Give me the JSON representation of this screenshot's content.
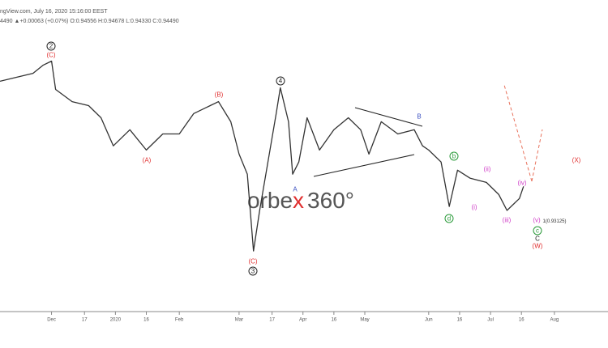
{
  "header": {
    "source": "ngView.com, July 16, 2020 15:16:00 EEST",
    "quote": "4490 ▲+0.00063 (+0.07%) O:0.94556 H:0.94678 L:0.94330 C:0.94490"
  },
  "logo": [
    "orbe",
    "x",
    "360°"
  ],
  "chart_data": {
    "type": "line",
    "color": "#333333",
    "x": [
      5,
      13,
      21,
      26,
      30,
      32,
      40,
      48,
      54,
      60,
      68,
      76,
      84,
      92,
      99,
      107,
      111,
      117,
      121,
      125,
      128,
      131,
      135,
      139,
      141,
      145,
      147,
      150,
      154,
      160,
      167,
      174,
      180,
      184,
      190,
      198,
      206,
      210,
      213,
      219,
      223,
      227,
      233,
      241,
      247,
      251,
      257,
      259
    ],
    "values": [
      0.9872,
      0.9888,
      0.9904,
      0.9937,
      0.9953,
      0.9839,
      0.979,
      0.9774,
      0.9725,
      0.9612,
      0.9677,
      0.9595,
      0.966,
      0.966,
      0.9742,
      0.9774,
      0.979,
      0.9709,
      0.9579,
      0.9498,
      0.9189,
      0.9352,
      0.9547,
      0.9742,
      0.9846,
      0.9709,
      0.9498,
      0.9547,
      0.9725,
      0.9595,
      0.9677,
      0.9725,
      0.9677,
      0.9579,
      0.9709,
      0.966,
      0.9677,
      0.9612,
      0.9595,
      0.9547,
      0.9368,
      0.9514,
      0.9482,
      0.9465,
      0.9416,
      0.9352,
      0.94,
      0.9449
    ],
    "xlim": [
      5,
      300
    ],
    "ylim": [
      0.8945,
      1.0085
    ],
    "xticks": [
      {
        "value": 30,
        "label": "Dec"
      },
      {
        "value": 46,
        "label": "17"
      },
      {
        "value": 61,
        "label": "2020"
      },
      {
        "value": 76,
        "label": "16"
      },
      {
        "value": 92,
        "label": "Feb"
      },
      {
        "value": 121,
        "label": "Mar"
      },
      {
        "value": 137,
        "label": "17"
      },
      {
        "value": 152,
        "label": "Apr"
      },
      {
        "value": 167,
        "label": "16"
      },
      {
        "value": 182,
        "label": "May"
      },
      {
        "value": 213,
        "label": "Jun"
      },
      {
        "value": 228,
        "label": "16"
      },
      {
        "value": 243,
        "label": "Jul"
      },
      {
        "value": 258,
        "label": "16"
      },
      {
        "value": 274,
        "label": "Aug"
      }
    ],
    "annotations": [
      {
        "text": "2",
        "color": "#222222"
      },
      {
        "text": "(C)",
        "color": "#e03030"
      },
      {
        "text": "(B)",
        "color": "#e03030"
      },
      {
        "text": "(A)",
        "color": "#e03030"
      },
      {
        "text": "4",
        "color": "#222222"
      },
      {
        "text": "A",
        "color": "#3a4fc0"
      },
      {
        "text": "B",
        "color": "#3a4fc0"
      },
      {
        "text": "(C)",
        "color": "#e03030"
      },
      {
        "text": "3",
        "color": "#222222"
      },
      {
        "text": "b",
        "color": "#2a9a3a"
      },
      {
        "text": "d",
        "color": "#2a9a3a"
      },
      {
        "text": "(ii)",
        "color": "#d040c8"
      },
      {
        "text": "(i)",
        "color": "#d040c8"
      },
      {
        "text": "(iii)",
        "color": "#d040c8"
      },
      {
        "text": "(iv)",
        "color": "#d040c8"
      },
      {
        "text": "(v)",
        "color": "#d040c8"
      },
      {
        "text": "1(0.93125)",
        "color": "#333333"
      },
      {
        "text": "c",
        "color": "#2a9a3a"
      },
      {
        "text": "C",
        "color": "#222222"
      },
      {
        "text": "(W)",
        "color": "#e03030"
      },
      {
        "text": "(X)",
        "color": "#e03030"
      }
    ]
  }
}
